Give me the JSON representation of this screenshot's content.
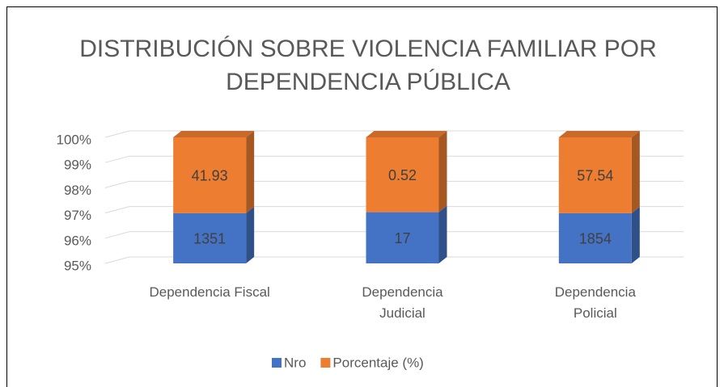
{
  "chart_data": {
    "type": "bar",
    "stacking": "percent",
    "title": "DISTRIBUCIÓN SOBRE VIOLENCIA FAMILIAR POR DEPENDENCIA PÚBLICA",
    "categories": [
      "Dependencia Fiscal",
      "Dependencia Judicial",
      "Dependencia Policial"
    ],
    "series": [
      {
        "name": "Nro",
        "color": "#4472c4",
        "values": [
          1351,
          17,
          1854
        ]
      },
      {
        "name": "Porcentaje (%)",
        "color": "#ed7d31",
        "values": [
          41.93,
          0.52,
          57.54
        ]
      }
    ],
    "ylim": [
      95,
      100
    ],
    "yticks": [
      {
        "value": 95,
        "label": "95%"
      },
      {
        "value": 96,
        "label": "96%"
      },
      {
        "value": 97,
        "label": "97%"
      },
      {
        "value": 98,
        "label": "98%"
      },
      {
        "value": 99,
        "label": "99%"
      },
      {
        "value": 100,
        "label": "100%"
      }
    ],
    "grid": true,
    "legend": "bottom"
  }
}
